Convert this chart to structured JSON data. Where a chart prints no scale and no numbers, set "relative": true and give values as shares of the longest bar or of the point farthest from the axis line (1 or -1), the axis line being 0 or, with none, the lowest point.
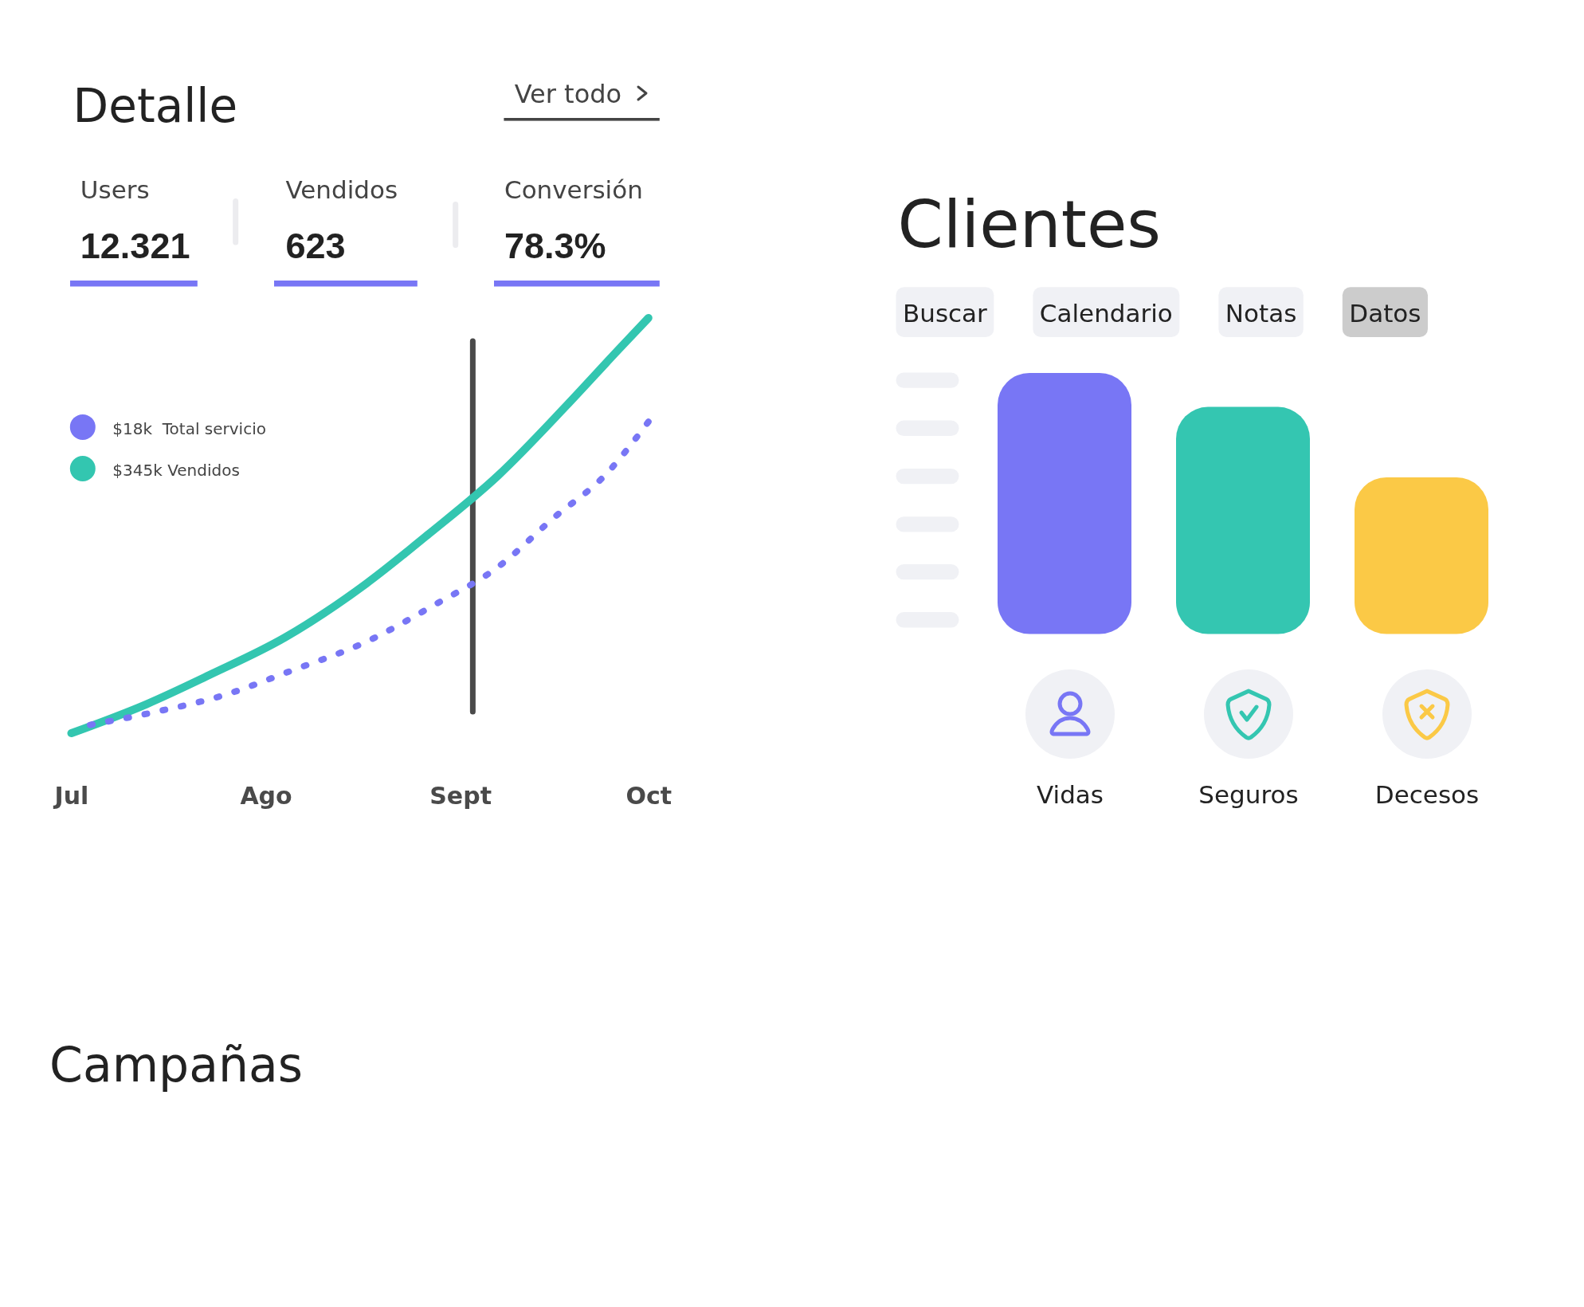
{
  "chart_data": [
    {
      "type": "line",
      "title": "Detalle",
      "annotations": [
        "Ver todo",
        "Users",
        "12.321",
        "Vendidos",
        "623",
        "Conversión",
        "78.3%"
      ],
      "xlim": [
        "--07-01",
        "--10-01"
      ],
      "xticks": [
        {
          "value": "--07-01",
          "label": "Jul"
        },
        {
          "value": "--08-01",
          "label": "Ago"
        },
        {
          "value": "--09-01",
          "label": "Sept"
        },
        {
          "value": "--10-01",
          "label": "Oct"
        }
      ],
      "relative": true,
      "legend": "top left",
      "marker": "none",
      "ref_lines": [
        {
          "axis": "x",
          "value": "--09-03",
          "color": "#4a4a4a"
        }
      ],
      "series": [
        {
          "name": "$18k  Total servicio",
          "color": "#7876f5",
          "line_style": "dotted",
          "x": [
            "--07-04",
            "--07-14",
            "--07-25",
            "--08-05",
            "--08-17",
            "--08-28",
            "--09-07",
            "--09-16",
            "--09-24",
            "--10-01"
          ],
          "values": [
            0.02,
            0.05,
            0.09,
            0.15,
            0.22,
            0.31,
            0.4,
            0.52,
            0.62,
            0.75
          ]
        },
        {
          "name": "$345k Vendidos",
          "color": "#33c6b0",
          "line_style": "solid",
          "x": [
            "--07-01",
            "--07-13",
            "--07-23",
            "--08-04",
            "--08-17",
            "--08-27",
            "--09-07",
            "--09-18",
            "--09-26",
            "--10-01"
          ],
          "values": [
            0,
            0.07,
            0.14,
            0.23,
            0.36,
            0.48,
            0.62,
            0.79,
            0.92,
            1
          ]
        }
      ]
    },
    {
      "type": "bar",
      "title": "Clientes",
      "annotations": [
        "Buscar",
        "Calendario",
        "Notas",
        "Datos"
      ],
      "categories": [
        "Vidas",
        "Seguros",
        "Decesos"
      ],
      "values": [
        1,
        0.87,
        0.6
      ],
      "colors": [
        "#7876f5",
        "#34c6b1",
        "#fbc946"
      ],
      "relative": true
    },
    {
      "type": "other",
      "title": "Campañas"
    }
  ]
}
